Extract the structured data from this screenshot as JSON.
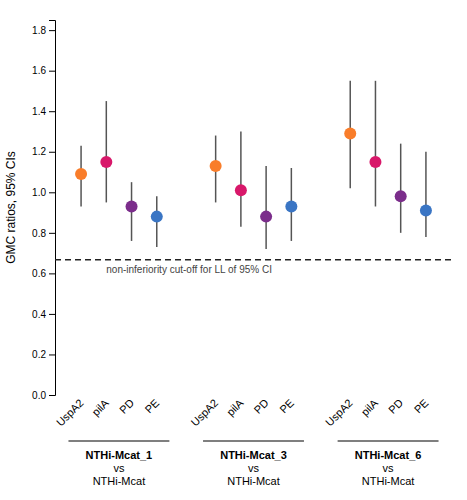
{
  "chart_data": {
    "type": "dot",
    "ylabel": "GMC ratios, 95% CIs",
    "categories": [
      "NTHi-Mcat_1\nvs\nNTHi-Mcat",
      "NTHi-Mcat_3\nvs\nNTHi-Mcat",
      "NTHi-Mcat_6\nvs\nNTHi-Mcat"
    ],
    "series": [
      {
        "name": "UspA2",
        "color": "#F97D2A",
        "values": [
          1.09,
          1.13,
          1.29
        ],
        "ci_low": [
          0.93,
          0.95,
          1.02
        ],
        "ci_high": [
          1.23,
          1.28,
          1.55
        ]
      },
      {
        "name": "pilA",
        "color": "#D8186A",
        "values": [
          1.15,
          1.01,
          1.15
        ],
        "ci_low": [
          0.95,
          0.83,
          0.93
        ],
        "ci_high": [
          1.45,
          1.3,
          1.55
        ]
      },
      {
        "name": "PD",
        "color": "#7B2D8B",
        "values": [
          0.93,
          0.88,
          0.98
        ],
        "ci_low": [
          0.76,
          0.72,
          0.8
        ],
        "ci_high": [
          1.05,
          1.13,
          1.24
        ]
      },
      {
        "name": "PE",
        "color": "#3A75C4",
        "values": [
          0.88,
          0.93,
          0.91
        ],
        "ci_low": [
          0.73,
          0.76,
          0.78
        ],
        "ci_high": [
          0.98,
          1.12,
          1.2
        ]
      }
    ],
    "reference_line": {
      "value": 0.667,
      "label": "non-inferiority cut-off for LL of 95% CI"
    },
    "ylim": [
      0.0,
      1.85
    ],
    "yticks": [
      {
        "value": 0.0,
        "label": "0.0"
      },
      0.2,
      0.4,
      0.6,
      0.8,
      {
        "value": 1.0,
        "label": "1.0"
      },
      1.2,
      1.4,
      1.6,
      1.8
    ],
    "grid": false
  }
}
